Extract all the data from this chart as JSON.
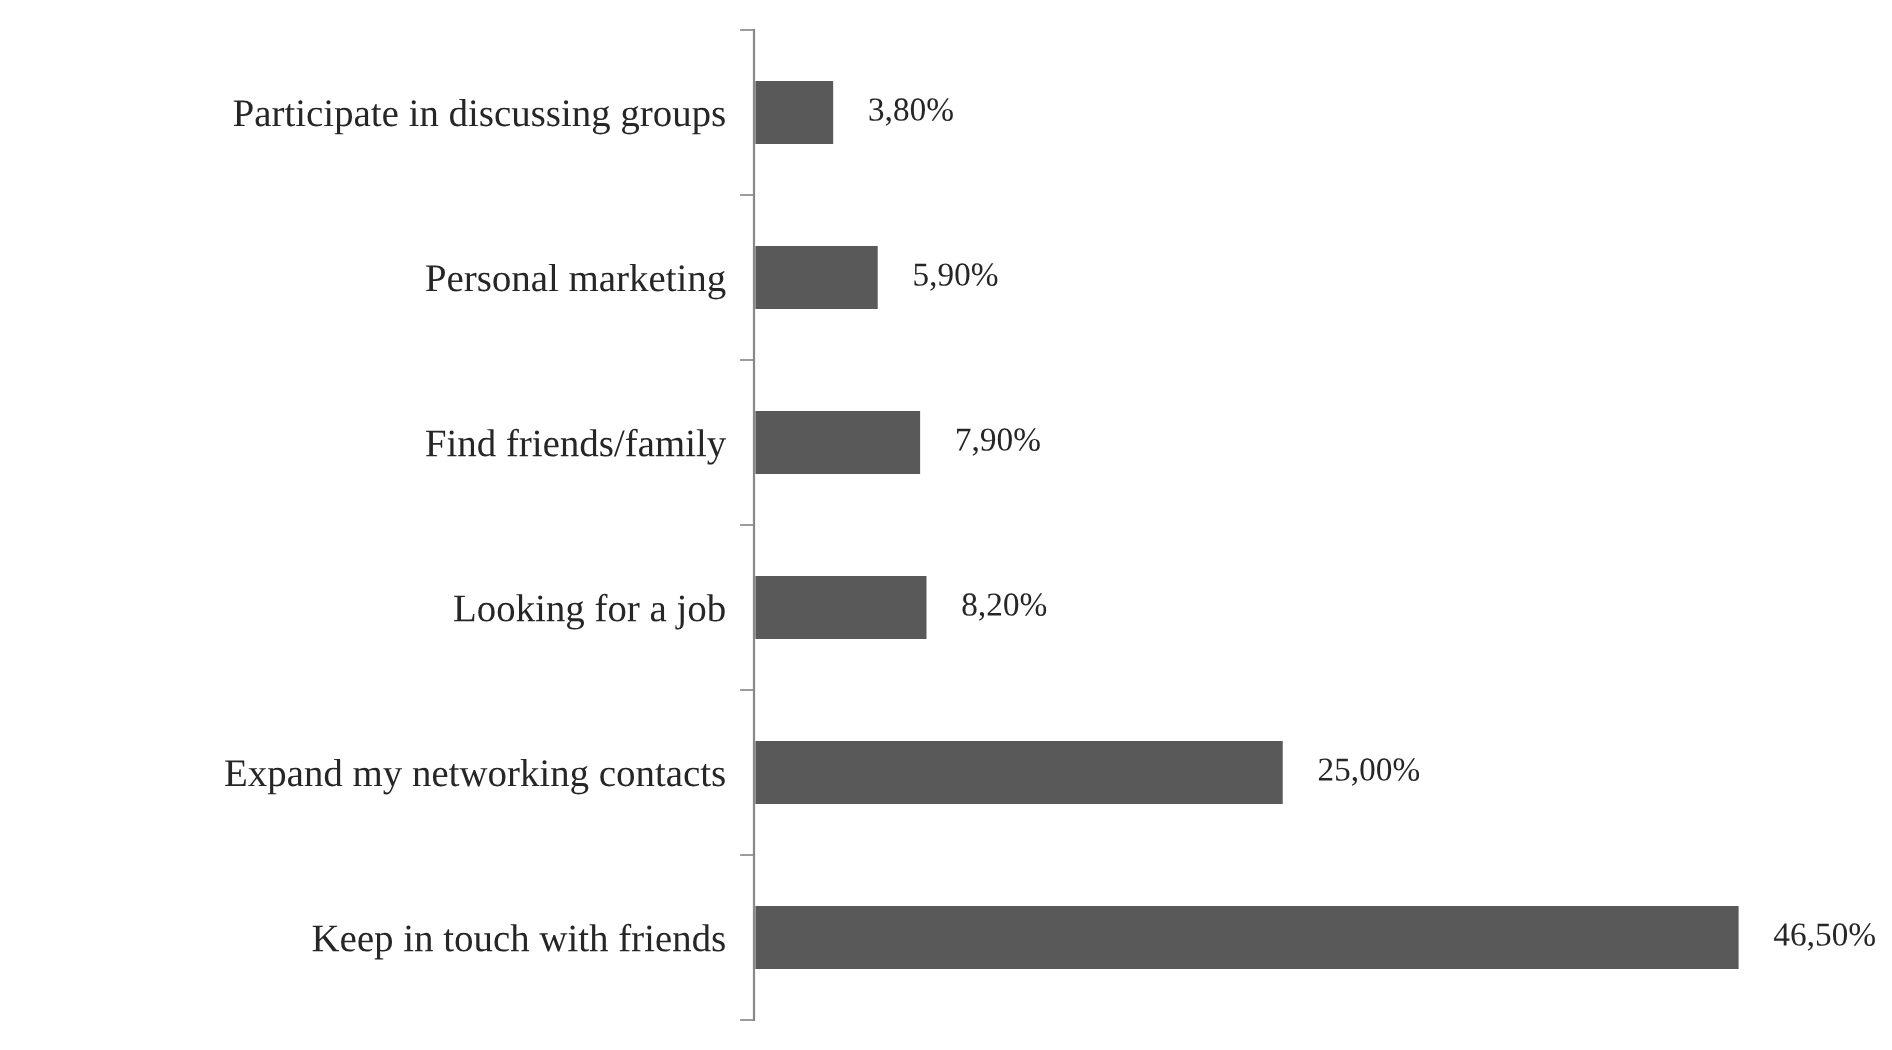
{
  "chart_data": {
    "type": "bar",
    "orientation": "horizontal",
    "categories": [
      "Participate in discussing groups",
      "Personal marketing",
      "Find friends/family",
      "Looking for a job",
      "Expand my networking contacts",
      "Keep in touch with friends"
    ],
    "values": [
      3.8,
      5.9,
      7.9,
      8.2,
      25.0,
      46.5
    ],
    "value_labels": [
      "3,80%",
      "5,90%",
      "7,90%",
      "8,20%",
      "25,00%",
      "46,50%"
    ],
    "color": "#595959",
    "xlim": [
      0,
      46.5
    ],
    "tick_labels": "y",
    "grid": false,
    "legend": false
  }
}
